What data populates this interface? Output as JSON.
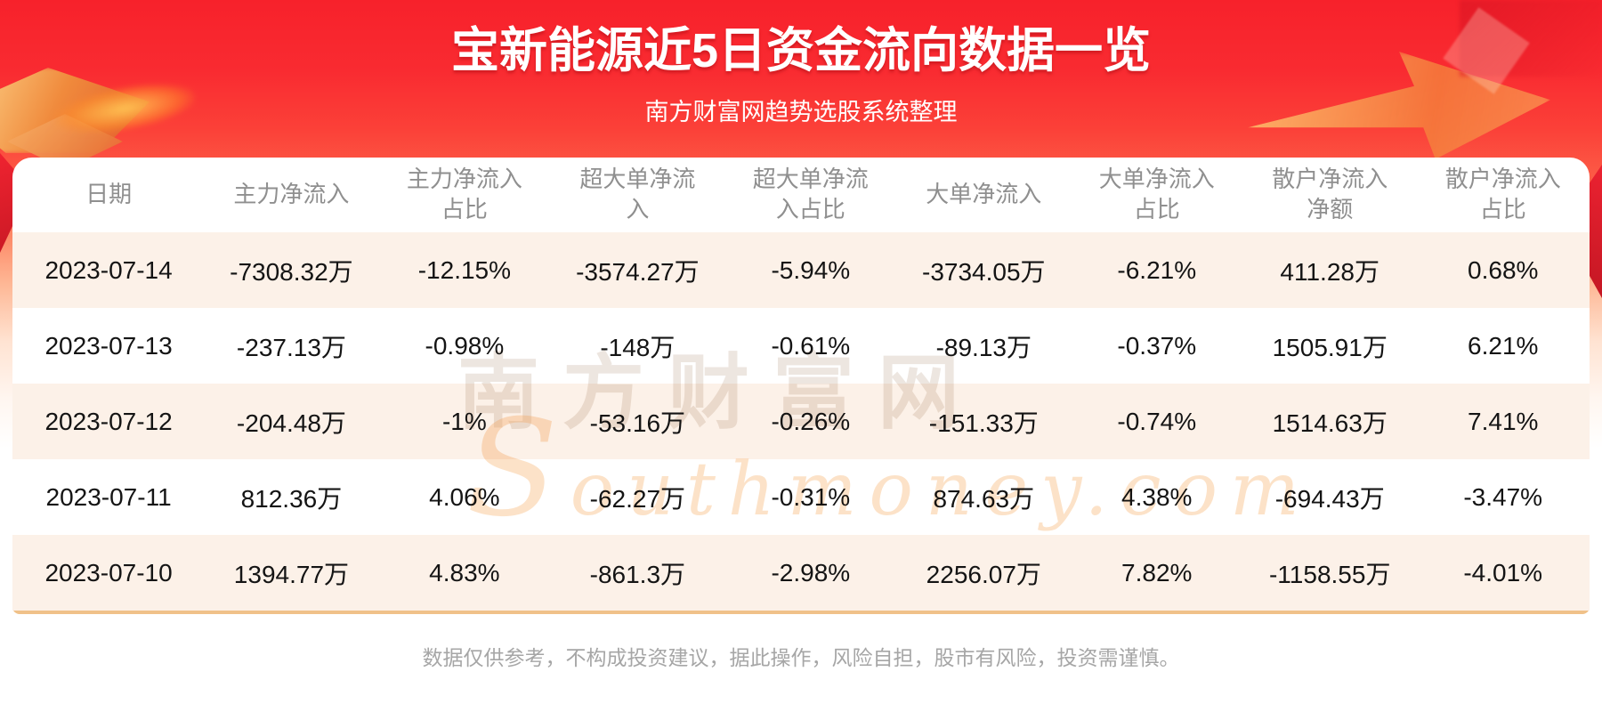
{
  "header": {
    "title": "宝新能源近5日资金流向数据一览",
    "subtitle": "南方财富网趋势选股系统整理"
  },
  "watermark": {
    "cn": "南方财富网",
    "en": "Southmoney.com"
  },
  "footer": {
    "disclaimer": "数据仅供参考，不构成投资建议，据此操作，风险自担，股市有风险，投资需谨慎。"
  },
  "colors": {
    "banner_red_top": "#f7212b",
    "banner_red_mid": "#fc5f48",
    "row_stripe": "#fcf1e8",
    "table_header_text": "#8f8f8f",
    "table_cell_text": "#141414",
    "card_bottom_line": "#f0c189",
    "title_text": "#ffffff",
    "disclaimer_text": "#a6a6a6",
    "decor_gold": "#f2a24b"
  },
  "chart_data": {
    "type": "table",
    "title": "宝新能源近5日资金流向数据一览",
    "subtitle": "南方财富网趋势选股系统整理",
    "columns": [
      "日期",
      "主力净流入",
      "主力净流入\n占比",
      "超大单净流\n入",
      "超大单净流\n入占比",
      "大单净流入",
      "大单净流入\n占比",
      "散户净流入\n净额",
      "散户净流入\n占比"
    ],
    "rows": [
      [
        "2023-07-14",
        "-7308.32万",
        "-12.15%",
        "-3574.27万",
        "-5.94%",
        "-3734.05万",
        "-6.21%",
        "411.28万",
        "0.68%"
      ],
      [
        "2023-07-13",
        "-237.13万",
        "-0.98%",
        "-148万",
        "-0.61%",
        "-89.13万",
        "-0.37%",
        "1505.91万",
        "6.21%"
      ],
      [
        "2023-07-12",
        "-204.48万",
        "-1%",
        "-53.16万",
        "-0.26%",
        "-151.33万",
        "-0.74%",
        "1514.63万",
        "7.41%"
      ],
      [
        "2023-07-11",
        "812.36万",
        "4.06%",
        "-62.27万",
        "-0.31%",
        "874.63万",
        "4.38%",
        "-694.43万",
        "-3.47%"
      ],
      [
        "2023-07-10",
        "1394.77万",
        "4.83%",
        "-861.3万",
        "-2.98%",
        "2256.07万",
        "7.82%",
        "-1158.55万",
        "-4.01%"
      ]
    ]
  }
}
